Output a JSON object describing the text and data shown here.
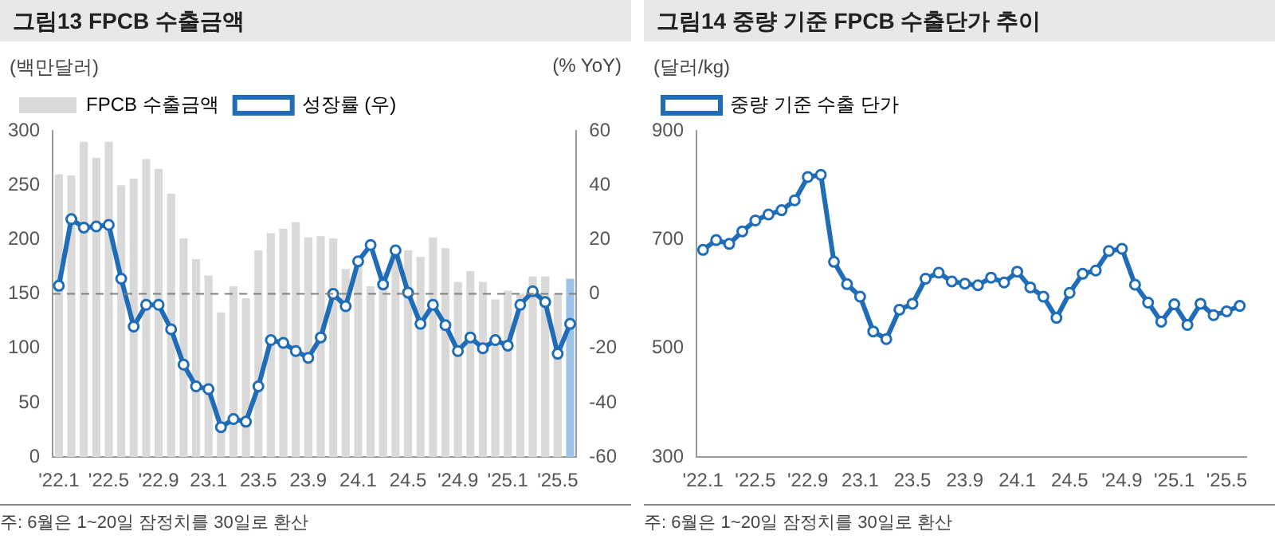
{
  "chart_data": [
    {
      "type": "bar",
      "title": "그림13  FPCB 수출금액",
      "ylabel": "(백만달러)",
      "y2label": "(% YoY)",
      "categories": [
        "'22.1",
        null,
        null,
        null,
        "'22.5",
        null,
        null,
        null,
        "'22.9",
        null,
        null,
        null,
        "23.1",
        null,
        null,
        null,
        "23.5",
        null,
        null,
        null,
        "23.9",
        null,
        null,
        null,
        "24.1",
        null,
        null,
        null,
        "24.5",
        null,
        null,
        null,
        "'24.9",
        null,
        null,
        null,
        "'25.1",
        null,
        null,
        null,
        "'25.5",
        null
      ],
      "series": [
        {
          "name": "FPCB 수출금액",
          "colors": [
            "#d9d9d9",
            "#d9d9d9",
            "#d9d9d9",
            "#d9d9d9",
            "#d9d9d9",
            "#d9d9d9",
            "#d9d9d9",
            "#d9d9d9",
            "#d9d9d9",
            "#d9d9d9",
            "#d9d9d9",
            "#d9d9d9",
            "#d9d9d9",
            "#d9d9d9",
            "#d9d9d9",
            "#d9d9d9",
            "#d9d9d9",
            "#d9d9d9",
            "#d9d9d9",
            "#d9d9d9",
            "#d9d9d9",
            "#d9d9d9",
            "#d9d9d9",
            "#d9d9d9",
            "#d9d9d9",
            "#d9d9d9",
            "#d9d9d9",
            "#d9d9d9",
            "#d9d9d9",
            "#d9d9d9",
            "#d9d9d9",
            "#d9d9d9",
            "#d9d9d9",
            "#d9d9d9",
            "#d9d9d9",
            "#d9d9d9",
            "#d9d9d9",
            "#d9d9d9",
            "#d9d9d9",
            "#d9d9d9",
            "#d9d9d9",
            "#9dc3e6"
          ],
          "values": [
            260,
            259,
            290,
            275,
            290,
            250,
            256,
            274,
            265,
            242,
            201,
            182,
            167,
            133,
            157,
            146,
            190,
            206,
            210,
            216,
            202,
            203,
            201,
            173,
            180,
            157,
            170,
            195,
            190,
            184,
            202,
            192,
            161,
            171,
            161,
            145,
            153,
            150,
            166,
            166,
            150,
            164
          ]
        },
        {
          "name": "성장률 (우)",
          "type": "line",
          "axis": "y2",
          "color": "#1f6cb8",
          "values": [
            3,
            27.5,
            24.4,
            24.8,
            25.4,
            5.6,
            -12,
            -4,
            -4,
            -13,
            -26,
            -34,
            -35,
            -49,
            -46,
            -47,
            -34,
            -17,
            -18,
            -21,
            -23.5,
            -16,
            0,
            -4.5,
            12,
            18,
            3.5,
            16,
            0.5,
            -11,
            -4,
            -11.5,
            -21,
            -16,
            -20,
            -17,
            -19,
            -4,
            1,
            -3,
            -22,
            -11
          ]
        }
      ],
      "ylim": [
        0,
        300
      ],
      "yticks": [
        0,
        50,
        100,
        150,
        200,
        250,
        300
      ],
      "y2lim": [
        -60,
        60
      ],
      "y2ticks": [
        -60,
        -40,
        -20,
        0,
        20,
        40,
        60
      ],
      "ref_lines": [
        {
          "axis": "y2",
          "value": 0,
          "color": "#808080",
          "line_style": "dashed"
        }
      ],
      "marker": "circle",
      "legend": "top",
      "grid": false,
      "annotations": [
        "주: 6월은 1~20일 잠정치를 30일로 환산"
      ]
    },
    {
      "type": "line",
      "title": "그림14  중량 기준 FPCB 수출단가 추이",
      "ylabel": "(달러/kg)",
      "categories": [
        "'22.1",
        null,
        null,
        null,
        "'22.5",
        null,
        null,
        null,
        "'22.9",
        null,
        null,
        null,
        "23.1",
        null,
        null,
        null,
        "23.5",
        null,
        null,
        null,
        "23.9",
        null,
        null,
        null,
        "24.1",
        null,
        null,
        null,
        "24.5",
        null,
        null,
        null,
        "'24.9",
        null,
        null,
        null,
        "'25.1",
        null,
        null,
        null,
        "'25.5",
        null
      ],
      "series": [
        {
          "name": "중량 기준 수출 단가",
          "color": "#1f6cb8",
          "values": [
            681,
            699,
            692,
            715,
            735,
            746,
            754,
            772,
            815,
            819,
            659,
            618,
            595,
            531,
            517,
            571,
            582,
            628,
            639,
            623,
            619,
            616,
            630,
            621,
            641,
            612,
            595,
            556,
            602,
            637,
            643,
            679,
            683,
            617,
            584,
            549,
            581,
            543,
            582,
            561,
            568,
            578
          ]
        }
      ],
      "ylim": [
        300,
        900
      ],
      "yticks": [
        300,
        500,
        700,
        900
      ],
      "marker": "circle",
      "legend": "top",
      "grid": false,
      "annotations": [
        "주: 6월은 1~20일 잠정치를 30일로 환산"
      ]
    }
  ]
}
